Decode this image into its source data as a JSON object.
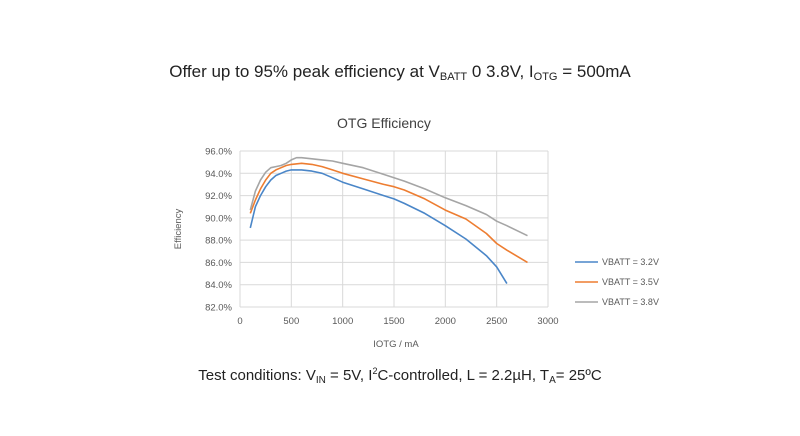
{
  "headline": {
    "prefix": "Offer up to 95% peak efficiency at V",
    "vbatt_sub": "BATT",
    "middle": " 0 3.8V, I",
    "iotg_sub": "OTG",
    "suffix": " = 500mA"
  },
  "footnote": {
    "prefix": "Test conditions: V",
    "vin_sub": "IN",
    "part2": " = 5V, I",
    "i2c_sup": "2",
    "part3": "C-controlled, L = 2.2µH, T",
    "ta_sub": "A",
    "suffix": "= 25ºC"
  },
  "chart_data": {
    "type": "line",
    "title": "OTG Efficiency",
    "xlabel": "IOTG / mA",
    "ylabel": "Efficiency",
    "xlim": [
      0,
      3000
    ],
    "ylim": [
      82.0,
      96.0
    ],
    "xticks": [
      0,
      500,
      1000,
      1500,
      2000,
      2500,
      3000
    ],
    "yticks": [
      82.0,
      84.0,
      86.0,
      88.0,
      90.0,
      92.0,
      94.0,
      96.0
    ],
    "ytick_labels": [
      "82.0%",
      "84.0%",
      "86.0%",
      "88.0%",
      "90.0%",
      "92.0%",
      "94.0%",
      "96.0%"
    ],
    "grid": true,
    "legend_position": "right",
    "series": [
      {
        "name": "VBATT = 3.2V",
        "color": "#4a86c8",
        "x": [
          100,
          150,
          200,
          250,
          300,
          350,
          400,
          450,
          500,
          600,
          700,
          800,
          900,
          1000,
          1200,
          1400,
          1500,
          1600,
          1800,
          2000,
          2200,
          2400,
          2500,
          2600
        ],
        "y": [
          89.1,
          91.0,
          92.0,
          92.8,
          93.4,
          93.8,
          94.0,
          94.2,
          94.3,
          94.3,
          94.2,
          94.0,
          93.6,
          93.2,
          92.6,
          92.0,
          91.7,
          91.3,
          90.4,
          89.3,
          88.1,
          86.6,
          85.6,
          84.1
        ]
      },
      {
        "name": "VBATT = 3.5V",
        "color": "#ed7d31",
        "x": [
          100,
          150,
          200,
          250,
          300,
          350,
          400,
          450,
          500,
          600,
          700,
          800,
          900,
          1000,
          1200,
          1400,
          1500,
          1600,
          1800,
          2000,
          2200,
          2400,
          2500,
          2600,
          2800
        ],
        "y": [
          90.4,
          91.6,
          92.6,
          93.4,
          94.0,
          94.3,
          94.5,
          94.7,
          94.8,
          94.9,
          94.8,
          94.6,
          94.3,
          94.0,
          93.5,
          93.0,
          92.8,
          92.5,
          91.7,
          90.7,
          89.9,
          88.6,
          87.7,
          87.1,
          86.0
        ]
      },
      {
        "name": "VBATT = 3.8V",
        "color": "#a5a5a5",
        "x": [
          100,
          150,
          200,
          250,
          300,
          350,
          400,
          450,
          500,
          550,
          600,
          700,
          800,
          900,
          1000,
          1200,
          1400,
          1500,
          1600,
          1800,
          2000,
          2200,
          2400,
          2500,
          2600,
          2800
        ],
        "y": [
          90.7,
          92.4,
          93.4,
          94.1,
          94.5,
          94.6,
          94.7,
          94.9,
          95.2,
          95.4,
          95.4,
          95.3,
          95.2,
          95.1,
          94.9,
          94.5,
          93.9,
          93.6,
          93.3,
          92.6,
          91.8,
          91.1,
          90.3,
          89.7,
          89.3,
          88.4
        ]
      }
    ]
  }
}
